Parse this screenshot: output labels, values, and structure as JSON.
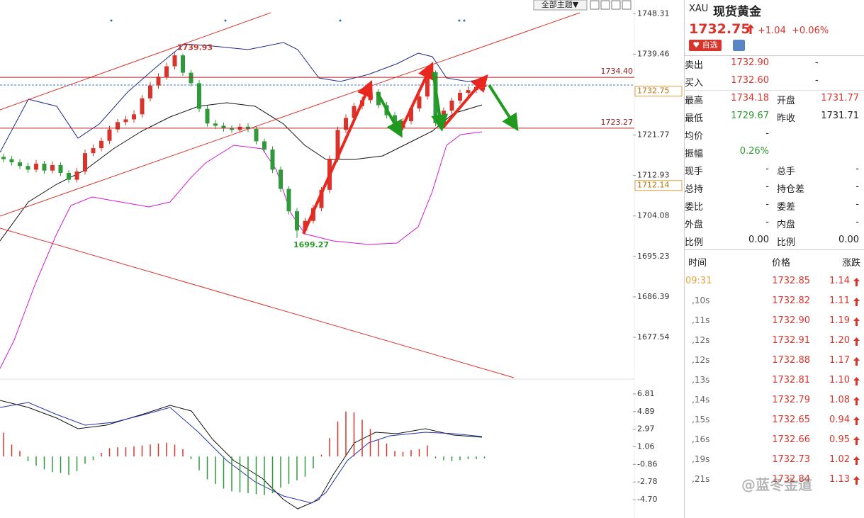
{
  "toolbar": {
    "theme": "全部主题▼"
  },
  "chart_data": [
    {
      "type": "candlestick",
      "up_color": "#d9342b",
      "down_color": "#2f9a3a",
      "ylim": [
        1668.4,
        1751.3
      ],
      "yticks": [
        1748.31,
        1739.46,
        1721.77,
        1712.93,
        1704.08,
        1695.23,
        1686.39,
        1677.54
      ],
      "grid": false,
      "opens": [
        1717.0,
        1716.5,
        1715.8,
        1715.0,
        1714.2,
        1715.5,
        1714.0,
        1715.2,
        1713.5,
        1712.0,
        1713.8,
        1717.8,
        1718.9,
        1720.5,
        1723.0,
        1724.6,
        1725.2,
        1726.3,
        1729.8,
        1732.6,
        1734.5,
        1736.8,
        1739.2,
        1735.4,
        1733.1,
        1727.5,
        1724.3,
        1723.8,
        1723.2,
        1722.9,
        1723.6,
        1723.1,
        1720.4,
        1718.6,
        1714.2,
        1710.0,
        1705.1,
        1700.9,
        1703.0,
        1705.8,
        1709.8,
        1716.6,
        1722.9,
        1725.5,
        1728.1,
        1729.4,
        1731.2,
        1728.3,
        1726.1,
        1723.4,
        1724.8,
        1727.6,
        1730.2,
        1735.5,
        1724.4,
        1727.1,
        1729.3,
        1731.0,
        1731.6,
        1732.3
      ],
      "highs": [
        1717.7,
        1717.2,
        1716.5,
        1715.7,
        1716.3,
        1716.1,
        1716.0,
        1715.8,
        1714.1,
        1714.6,
        1718.6,
        1719.7,
        1721.2,
        1723.8,
        1725.3,
        1726.0,
        1727.2,
        1730.5,
        1733.4,
        1735.3,
        1737.6,
        1739.93,
        1739.6,
        1736.0,
        1733.8,
        1728.2,
        1725.1,
        1724.5,
        1723.9,
        1724.3,
        1724.4,
        1723.7,
        1721.0,
        1719.3,
        1714.9,
        1710.6,
        1705.8,
        1703.7,
        1706.5,
        1710.4,
        1717.3,
        1723.6,
        1726.3,
        1728.8,
        1730.2,
        1731.9,
        1731.8,
        1729.0,
        1726.8,
        1725.5,
        1728.3,
        1731.0,
        1736.2,
        1735.9,
        1727.8,
        1730.0,
        1731.7,
        1732.4,
        1733.0,
        1733.5
      ],
      "lows": [
        1715.8,
        1715.1,
        1714.3,
        1713.5,
        1713.6,
        1713.3,
        1713.4,
        1712.8,
        1711.3,
        1711.4,
        1713.1,
        1717.1,
        1718.2,
        1719.8,
        1722.3,
        1723.9,
        1724.5,
        1725.6,
        1729.1,
        1731.9,
        1733.8,
        1736.1,
        1734.7,
        1732.4,
        1726.8,
        1723.6,
        1723.1,
        1722.5,
        1722.2,
        1722.3,
        1722.4,
        1719.7,
        1717.9,
        1713.5,
        1709.3,
        1704.4,
        1699.27,
        1700.3,
        1702.4,
        1705.1,
        1709.1,
        1715.9,
        1722.2,
        1724.8,
        1727.4,
        1728.7,
        1727.6,
        1725.4,
        1722.7,
        1722.8,
        1724.1,
        1726.9,
        1729.5,
        1723.7,
        1723.8,
        1726.4,
        1728.6,
        1730.3,
        1730.9,
        1731.6
      ],
      "closes": [
        1716.5,
        1715.8,
        1715.0,
        1714.2,
        1715.5,
        1714.0,
        1715.2,
        1713.5,
        1712.0,
        1713.8,
        1717.8,
        1718.9,
        1720.5,
        1723.0,
        1724.6,
        1725.2,
        1726.3,
        1729.8,
        1732.6,
        1734.5,
        1736.8,
        1739.2,
        1735.4,
        1733.1,
        1727.5,
        1724.3,
        1723.8,
        1723.2,
        1722.9,
        1723.6,
        1723.1,
        1720.4,
        1718.6,
        1714.2,
        1710.0,
        1705.1,
        1700.9,
        1703.0,
        1705.8,
        1709.8,
        1716.6,
        1722.9,
        1725.5,
        1728.1,
        1729.4,
        1731.2,
        1728.3,
        1726.1,
        1723.4,
        1724.8,
        1727.6,
        1730.2,
        1735.5,
        1724.4,
        1727.1,
        1729.3,
        1731.0,
        1731.6,
        1732.3,
        1732.75
      ],
      "price_lines": [
        {
          "value": 1734.4,
          "label": "1734.40"
        },
        {
          "value": 1723.27,
          "label": "1723.27"
        }
      ],
      "price_boxes": [
        {
          "value": 1732.75,
          "label": "1732.75"
        },
        {
          "value": 1712.14,
          "label": "1712.14"
        }
      ],
      "annotations": [
        {
          "value": 1739.93,
          "label": "1739.93"
        },
        {
          "value": 1699.27,
          "label": "1699.27"
        }
      ]
    },
    {
      "type": "bar",
      "up_color": "#d9342b",
      "down_color": "#2f9a3a",
      "ylim": [
        -6.7,
        8.04
      ],
      "yticks": [
        6.81,
        4.89,
        2.97,
        1.06,
        -0.86,
        -2.78,
        {
          "value": -4.7,
          "label": "-4.70"
        }
      ],
      "values": [
        2.6,
        1.3,
        0.6,
        -0.5,
        -1.0,
        -1.4,
        -1.7,
        -1.8,
        -2.0,
        -1.6,
        -0.8,
        -0.4,
        0.4,
        0.9,
        1.0,
        1.0,
        1.1,
        1.2,
        1.3,
        1.4,
        1.5,
        1.3,
        0.8,
        -0.3,
        -1.5,
        -2.5,
        -3.0,
        -3.5,
        -3.8,
        -3.9,
        -4.0,
        -4.1,
        -4.2,
        -4.0,
        -3.4,
        -3.0,
        -2.6,
        -2.2,
        -1.3,
        0.2,
        2.0,
        3.8,
        4.9,
        4.8,
        4.0,
        3.0,
        1.8,
        1.4,
        0.6,
        0.5,
        0.7,
        0.8,
        1.2,
        -0.2,
        -0.4,
        -0.5,
        -0.4,
        -0.3,
        -0.3,
        -0.2
      ]
    }
  ],
  "quote": {
    "symbol": "XAU",
    "name": "现货黄金",
    "price": "1732.75",
    "change": "+1.04",
    "change_pct": "+0.06%",
    "watch_button": "自选",
    "rows": [
      [
        "卖出",
        "1732.90",
        "-"
      ],
      [
        "买入",
        "1732.60",
        "-"
      ],
      [
        "最高",
        "1734.18",
        "开盘",
        "1731.77"
      ],
      [
        "最低",
        "1729.67",
        "昨收",
        "1731.71"
      ],
      [
        "均价",
        "-"
      ],
      [
        "振幅",
        "0.26%"
      ],
      [
        "现手",
        "-",
        "总手",
        "-"
      ],
      [
        "总持",
        "-",
        "持仓差",
        "-"
      ],
      [
        "委比",
        "-",
        "委差",
        "-"
      ],
      [
        "外盘",
        "-",
        "内盘",
        "-"
      ],
      [
        "比例",
        "0.00",
        "比例",
        "0.00"
      ]
    ]
  },
  "trades": {
    "columns": [
      "时间",
      "价格",
      "涨跌"
    ],
    "rows": [
      [
        "09:31",
        "1732.85",
        "1.14"
      ],
      [
        ",10s",
        "1732.82",
        "1.11"
      ],
      [
        ",11s",
        "1732.90",
        "1.19"
      ],
      [
        ",12s",
        "1732.91",
        "1.20"
      ],
      [
        ",12s",
        "1732.88",
        "1.17"
      ],
      [
        ",13s",
        "1732.81",
        "1.10"
      ],
      [
        ",14s",
        "1732.79",
        "1.08"
      ],
      [
        ",15s",
        "1732.65",
        "0.94"
      ],
      [
        ",16s",
        "1732.66",
        "0.95"
      ],
      [
        ",19s",
        "1732.73",
        "1.02"
      ],
      [
        ",21s",
        "1732.84",
        "1.13"
      ]
    ]
  },
  "watermark": "@蓝冬金道"
}
